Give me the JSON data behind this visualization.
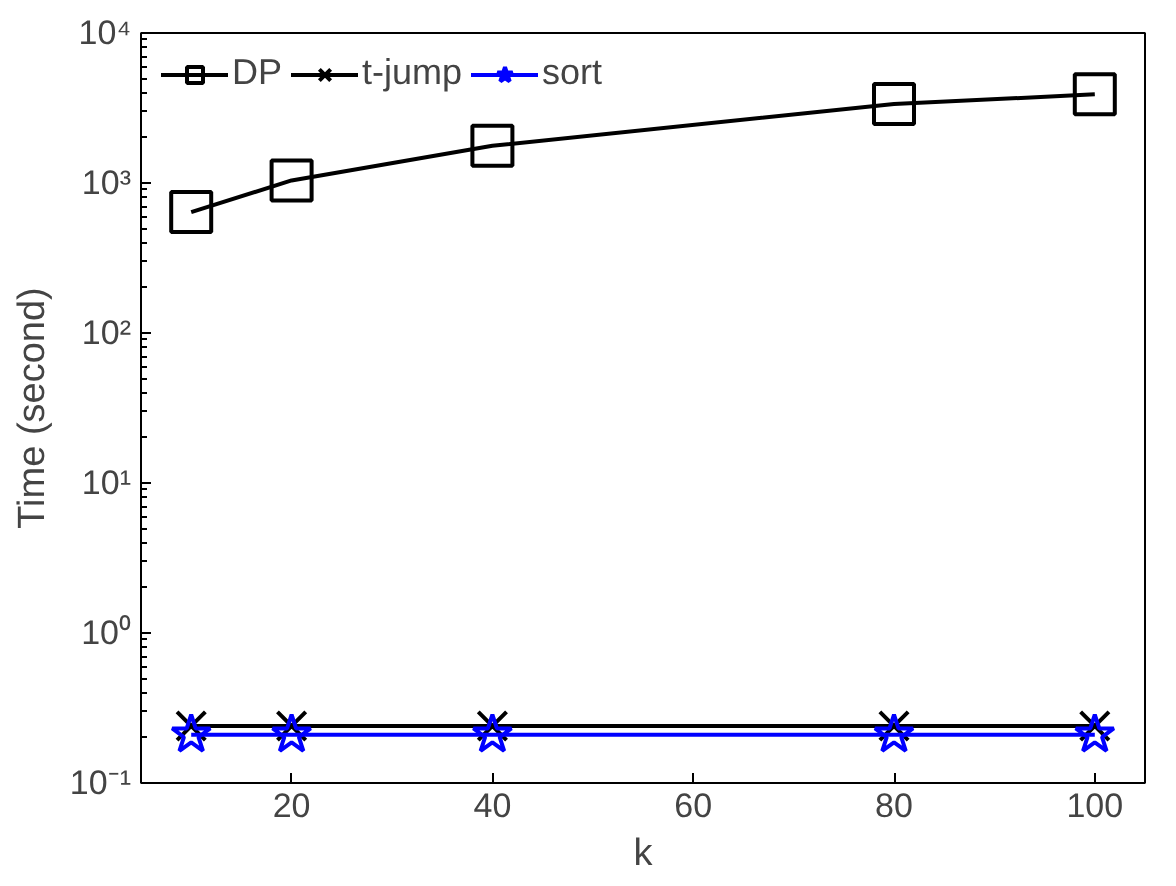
{
  "chart_data": {
    "type": "line",
    "xlabel": "k",
    "ylabel": "Time (second)",
    "x": [
      10,
      20,
      40,
      80,
      100
    ],
    "series": [
      {
        "name": "DP",
        "color": "#000000",
        "marker": "square",
        "values": [
          640,
          1040,
          1770,
          3360,
          3900
        ]
      },
      {
        "name": "t-jump",
        "color": "#000000",
        "marker": "cross",
        "values": [
          0.24,
          0.24,
          0.24,
          0.24,
          0.24
        ]
      },
      {
        "name": "sort",
        "color": "#0000ff",
        "marker": "star",
        "values": [
          0.21,
          0.21,
          0.21,
          0.21,
          0.21
        ]
      }
    ],
    "log": "y",
    "xlim": [
      5,
      105
    ],
    "ylim": [
      0.1,
      10000
    ],
    "xticks": [
      20,
      40,
      60,
      80,
      100
    ],
    "yticks": [
      {
        "value": 0.1,
        "label": "10⁻¹"
      },
      {
        "value": 1,
        "label": "10⁰"
      },
      {
        "value": 10,
        "label": "10¹"
      },
      {
        "value": 100,
        "label": "10²"
      },
      {
        "value": 1000,
        "label": "10³"
      },
      {
        "value": 10000,
        "label": "10⁴"
      }
    ],
    "grid": false,
    "legend": "top left",
    "line_style": "solid"
  }
}
